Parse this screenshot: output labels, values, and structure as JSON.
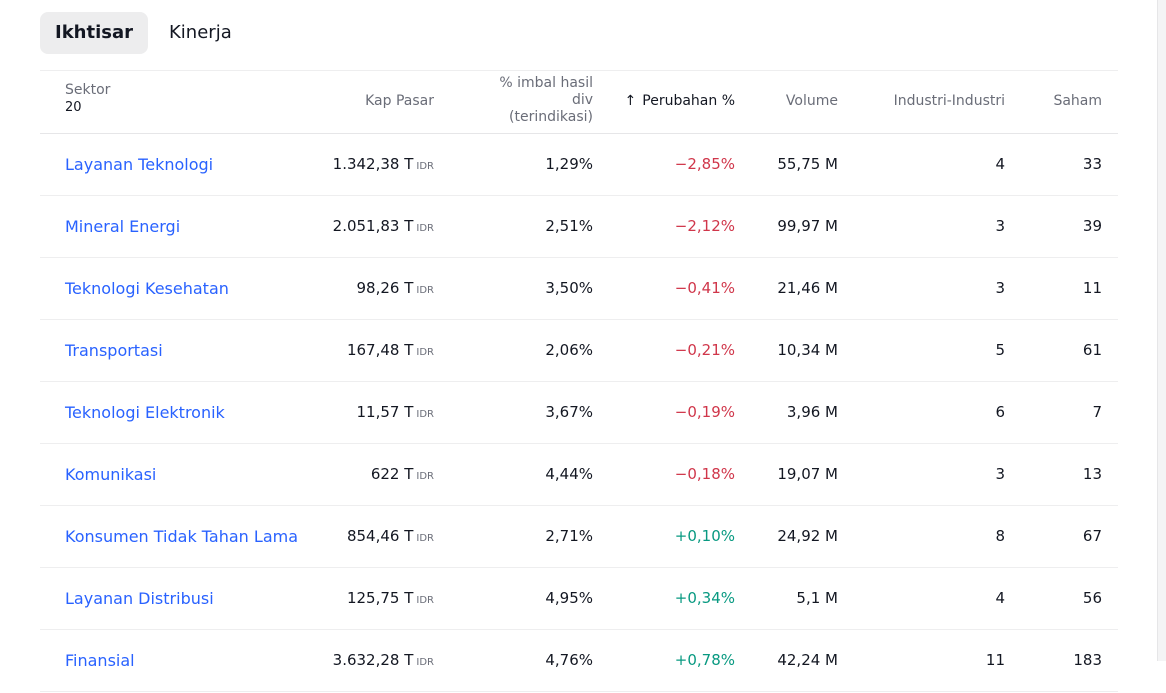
{
  "tabs": [
    {
      "label": "Ikhtisar",
      "active": true
    },
    {
      "label": "Kinerja",
      "active": false
    }
  ],
  "header": {
    "sektor": "Sektor",
    "sektor_count": "20",
    "kap_pasar": "Kap Pasar",
    "div_line1": "% imbal hasil",
    "div_line2": "div",
    "div_line3": "(terindikasi)",
    "perubahan": "Perubahan %",
    "volume": "Volume",
    "industri": "Industri-Industri",
    "saham": "Saham"
  },
  "colors": {
    "link": "#2962ff",
    "negative": "#d0364a",
    "positive": "#089981"
  },
  "rows": [
    {
      "name": "Layanan Teknologi",
      "cap": "1.342,38 T",
      "cap_unit": "IDR",
      "div": "1,29%",
      "chg": "−2,85%",
      "vol": "55,75 M",
      "ind": "4",
      "stk": "33",
      "dir": "neg"
    },
    {
      "name": "Mineral Energi",
      "cap": "2.051,83 T",
      "cap_unit": "IDR",
      "div": "2,51%",
      "chg": "−2,12%",
      "vol": "99,97 M",
      "ind": "3",
      "stk": "39",
      "dir": "neg"
    },
    {
      "name": "Teknologi Kesehatan",
      "cap": "98,26 T",
      "cap_unit": "IDR",
      "div": "3,50%",
      "chg": "−0,41%",
      "vol": "21,46 M",
      "ind": "3",
      "stk": "11",
      "dir": "neg"
    },
    {
      "name": "Transportasi",
      "cap": "167,48 T",
      "cap_unit": "IDR",
      "div": "2,06%",
      "chg": "−0,21%",
      "vol": "10,34 M",
      "ind": "5",
      "stk": "61",
      "dir": "neg"
    },
    {
      "name": "Teknologi Elektronik",
      "cap": "11,57 T",
      "cap_unit": "IDR",
      "div": "3,67%",
      "chg": "−0,19%",
      "vol": "3,96 M",
      "ind": "6",
      "stk": "7",
      "dir": "neg"
    },
    {
      "name": "Komunikasi",
      "cap": "622 T",
      "cap_unit": "IDR",
      "div": "4,44%",
      "chg": "−0,18%",
      "vol": "19,07 M",
      "ind": "3",
      "stk": "13",
      "dir": "neg"
    },
    {
      "name": "Konsumen Tidak Tahan Lama",
      "cap": "854,46 T",
      "cap_unit": "IDR",
      "div": "2,71%",
      "chg": "+0,10%",
      "vol": "24,92 M",
      "ind": "8",
      "stk": "67",
      "dir": "pos"
    },
    {
      "name": "Layanan Distribusi",
      "cap": "125,75 T",
      "cap_unit": "IDR",
      "div": "4,95%",
      "chg": "+0,34%",
      "vol": "5,1 M",
      "ind": "4",
      "stk": "56",
      "dir": "pos"
    },
    {
      "name": "Finansial",
      "cap": "3.632,28 T",
      "cap_unit": "IDR",
      "div": "4,76%",
      "chg": "+0,78%",
      "vol": "42,24 M",
      "ind": "11",
      "stk": "183",
      "dir": "pos"
    }
  ]
}
